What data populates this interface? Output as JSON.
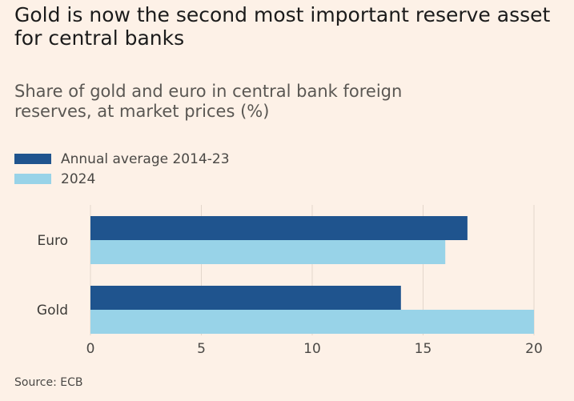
{
  "chart_data": {
    "type": "bar",
    "orientation": "horizontal",
    "title": "Gold is now the second most important reserve asset for central banks",
    "subtitle": "Share of gold and euro in central bank foreign reserves, at market prices (%)",
    "categories": [
      "Euro",
      "Gold"
    ],
    "series": [
      {
        "name": "Annual average 2014-23",
        "values": [
          17,
          14
        ],
        "color": "#1f548e"
      },
      {
        "name": "2024",
        "values": [
          16,
          20
        ],
        "color": "#98d3e8"
      }
    ],
    "xlim": [
      0,
      20
    ],
    "xticks": [
      "0",
      "5",
      "10",
      "15",
      "20"
    ],
    "xlabel": "",
    "ylabel": "",
    "grid": true,
    "legend_position": "top-left",
    "source": "Source: ECB"
  }
}
